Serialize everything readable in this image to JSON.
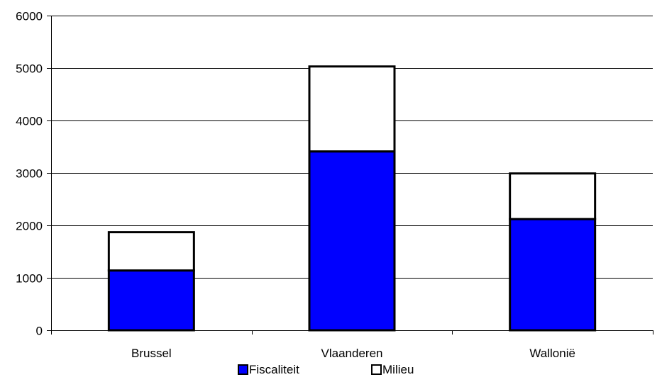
{
  "chart_data": {
    "type": "bar",
    "stacked": true,
    "categories": [
      "Brussel",
      "Vlaanderen",
      "Wallonië"
    ],
    "series": [
      {
        "name": "Fiscaliteit",
        "values": [
          1140,
          3410,
          2120
        ],
        "color": "#0000ff"
      },
      {
        "name": "Milieu",
        "values": [
          730,
          1620,
          870
        ],
        "color": "#ffffff"
      }
    ],
    "title": "",
    "xlabel": "",
    "ylabel": "",
    "ylim": [
      0,
      6000
    ],
    "yticks": [
      "0",
      "1000",
      "2000",
      "3000",
      "4000",
      "5000",
      "6000"
    ],
    "grid": true,
    "legend": "bottom"
  }
}
